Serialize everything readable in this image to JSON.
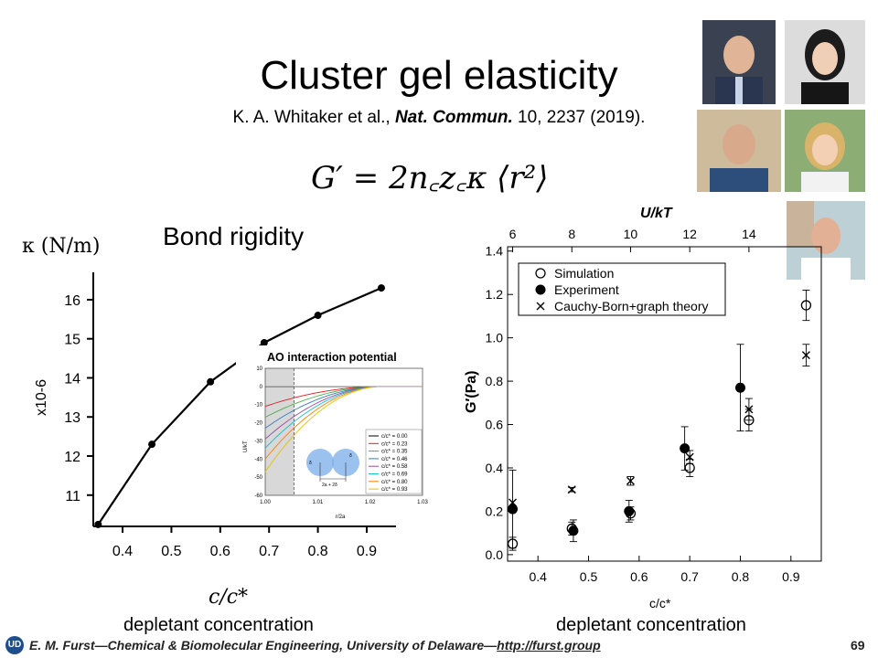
{
  "slide": {
    "title": "Cluster gel elasticity",
    "citation_authors": "K. A. Whitaker et al., ",
    "citation_journal": "Nat. Commun.",
    "citation_rest": " 10, 2237 (2019).",
    "equation": "G′ = 2n꜀z꜀κ ⟨r²⟩",
    "page_number": "69",
    "footer": {
      "author": "E. M. Furst",
      "affiliation": "—Chemical & Biomolecular Engineering, University of Delaware—",
      "link": "http://furst.group"
    },
    "logo": "university-logo-icon"
  },
  "colors": {
    "curve": "#000000",
    "inset_curves": [
      "#000000",
      "#e41a1c",
      "#4daf4a",
      "#377eb8",
      "#984ea3",
      "#17becf",
      "#ff7f00",
      "#e5c100",
      "#8c6d1f"
    ]
  },
  "chart_data": [
    {
      "type": "line",
      "title": "Bond rigidity",
      "ylabel": "κ (N/m)",
      "yscale_label": "x10-6",
      "xlabel": "c/c*",
      "xcaption": "depletant concentration",
      "x": [
        0.35,
        0.46,
        0.58,
        0.69,
        0.8,
        0.93
      ],
      "y": [
        10.25,
        12.3,
        13.9,
        14.9,
        15.6,
        16.3
      ],
      "xlim": [
        0.34,
        0.96
      ],
      "ylim": [
        10.2,
        16.7
      ],
      "xticks": [
        0.4,
        0.5,
        0.6,
        0.7,
        0.8,
        0.9
      ],
      "xtick_labels": [
        "0.4",
        "0.5",
        "0.6",
        "0.7",
        "0.8",
        "0.9"
      ],
      "yticks": [
        11,
        12,
        13,
        14,
        15,
        16
      ],
      "ytick_labels": [
        "11",
        "12",
        "13",
        "14",
        "15",
        "16"
      ],
      "grid": false
    },
    {
      "type": "line",
      "title": "AO interaction potential",
      "xlabel": "r/2a",
      "ylabel": "U/kT",
      "xlim": [
        1.0,
        1.03
      ],
      "ylim": [
        -60,
        10
      ],
      "xticks": [
        1.0,
        1.01,
        1.02,
        1.03
      ],
      "xtick_labels": [
        "1.00",
        "1.01",
        "1.02",
        "1.03"
      ],
      "yticks": [
        10,
        0,
        -10,
        -20,
        -30,
        -40,
        -50,
        -60
      ],
      "ytick_labels": [
        "10",
        "0",
        "-10",
        "-20",
        "-30",
        "-40",
        "-50",
        "-60"
      ],
      "contact_marker_x": 1.0055,
      "range_end_x": 1.0225,
      "series": [
        {
          "name": "c/c* = 0.00",
          "contact_value": 0
        },
        {
          "name": "c/c* = 0.23",
          "contact_value": -11
        },
        {
          "name": "c/c* = 0.35",
          "contact_value": -17
        },
        {
          "name": "c/c* = 0.46",
          "contact_value": -23
        },
        {
          "name": "c/c* = 0.58",
          "contact_value": -29
        },
        {
          "name": "c/c* = 0.69",
          "contact_value": -34
        },
        {
          "name": "c/c* = 0.80",
          "contact_value": -40
        },
        {
          "name": "c/c* = 0.93",
          "contact_value": -47
        }
      ],
      "diagram_labels": {
        "gap": "2a + 2δ",
        "delta_left": "δ",
        "delta_right": "δ"
      },
      "legend_position": "bottom-right"
    },
    {
      "type": "scatter",
      "xlabel": "c/c*",
      "xcaption": "depletant concentration",
      "x2label": "U/kT",
      "ylabel": "G′(Pa)",
      "xlim": [
        0.34,
        0.96
      ],
      "ylim": [
        -0.03,
        1.42
      ],
      "xticks": [
        0.4,
        0.5,
        0.6,
        0.7,
        0.8,
        0.9
      ],
      "xtick_labels": [
        "0.4",
        "0.5",
        "0.6",
        "0.7",
        "0.8",
        "0.9"
      ],
      "x2ticks": [
        6,
        8,
        10,
        12,
        14
      ],
      "x2tick_labels": [
        "6",
        "8",
        "10",
        "12",
        "14"
      ],
      "x2tick_positions_x": [
        0.35,
        0.467,
        0.583,
        0.7,
        0.817
      ],
      "yticks": [
        0.0,
        0.2,
        0.4,
        0.6,
        0.8,
        1.0,
        1.2,
        1.4
      ],
      "ytick_labels": [
        "0.0",
        "0.2",
        "0.4",
        "0.6",
        "0.8",
        "1.0",
        "1.2",
        "1.4"
      ],
      "legend_position": "top-left",
      "series": [
        {
          "name": "Simulation",
          "marker": "open-circle",
          "x": [
            0.35,
            0.467,
            0.583,
            0.7,
            0.817,
            0.93
          ],
          "y": [
            0.05,
            0.12,
            0.19,
            0.4,
            0.62,
            1.15
          ],
          "err": [
            0.03,
            0.03,
            0.03,
            0.04,
            0.05,
            0.07
          ]
        },
        {
          "name": "Experiment",
          "marker": "filled-circle",
          "x": [
            0.35,
            0.47,
            0.58,
            0.69,
            0.8
          ],
          "y": [
            0.21,
            0.11,
            0.2,
            0.49,
            0.77
          ],
          "err": [
            0.18,
            0.05,
            0.05,
            0.1,
            0.2
          ]
        },
        {
          "name": "Cauchy-Born+graph theory",
          "marker": "cross",
          "x": [
            0.35,
            0.467,
            0.583,
            0.7,
            0.817,
            0.93
          ],
          "y": [
            0.24,
            0.3,
            0.34,
            0.45,
            0.67,
            0.92
          ],
          "err": [
            0.0,
            0.01,
            0.02,
            0.03,
            0.05,
            0.05
          ]
        }
      ]
    }
  ]
}
